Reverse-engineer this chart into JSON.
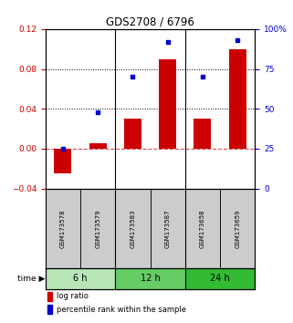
{
  "title": "GDS2708 / 6796",
  "samples": [
    "GSM173578",
    "GSM173579",
    "GSM173583",
    "GSM173587",
    "GSM173658",
    "GSM173659"
  ],
  "log_ratio": [
    -0.025,
    0.005,
    0.03,
    0.09,
    0.03,
    0.1
  ],
  "percentile_rank": [
    25,
    48,
    70,
    92,
    70,
    93
  ],
  "ylim_left": [
    -0.04,
    0.12
  ],
  "ylim_right": [
    0,
    100
  ],
  "yticks_left": [
    -0.04,
    0,
    0.04,
    0.08,
    0.12
  ],
  "yticks_right": [
    0,
    25,
    50,
    75,
    100
  ],
  "ytick_labels_right": [
    "0",
    "25",
    "50",
    "75",
    "100%"
  ],
  "hlines": [
    0.04,
    0.08
  ],
  "groups": [
    {
      "label": "6 h",
      "indices": [
        0,
        1
      ],
      "color": "#b8e6b8"
    },
    {
      "label": "12 h",
      "indices": [
        2,
        3
      ],
      "color": "#66cc66"
    },
    {
      "label": "24 h",
      "indices": [
        4,
        5
      ],
      "color": "#33bb33"
    }
  ],
  "bar_color": "#cc0000",
  "dot_color": "#0000cc",
  "zero_line_color": "#cc0000",
  "background_color": "#ffffff",
  "plot_bg_color": "#ffffff",
  "label_color_left": "#cc0000",
  "label_color_right": "#0000cc",
  "tick_bg_color": "#cccccc",
  "legend_bar_label": "log ratio",
  "legend_dot_label": "percentile rank within the sample"
}
